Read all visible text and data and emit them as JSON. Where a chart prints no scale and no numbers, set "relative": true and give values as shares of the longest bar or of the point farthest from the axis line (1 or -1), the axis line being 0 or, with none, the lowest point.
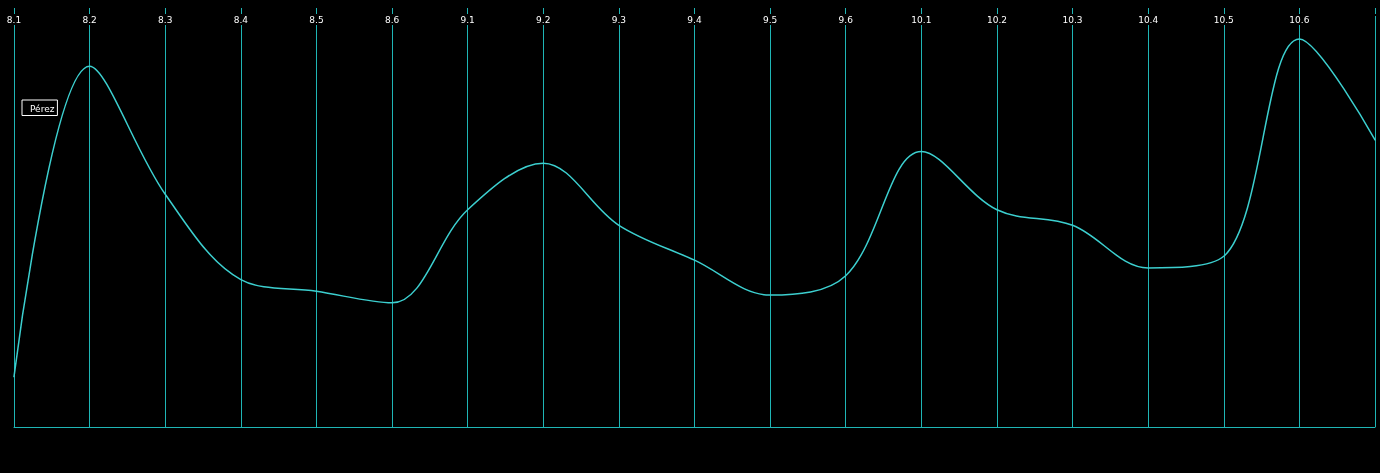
{
  "chart_data": {
    "type": "line",
    "relative": true,
    "categories": [
      "8.1",
      "8.2",
      "8.3",
      "8.4",
      "8.5",
      "8.6",
      "9.1",
      "9.2",
      "9.3",
      "9.4",
      "9.5",
      "9.6",
      "10.1",
      "10.2",
      "10.3",
      "10.4",
      "10.5",
      "10.6",
      null
    ],
    "series": [
      {
        "name": "Pérez",
        "color": "#3ccfcf",
        "values": [
          0.13,
          0.93,
          0.6,
          0.38,
          0.35,
          0.32,
          0.56,
          0.68,
          0.52,
          0.43,
          0.34,
          0.39,
          0.71,
          0.56,
          0.52,
          0.41,
          0.44,
          1,
          0.74
        ]
      }
    ],
    "grid": "x",
    "legend": "top left",
    "marker": "none"
  }
}
